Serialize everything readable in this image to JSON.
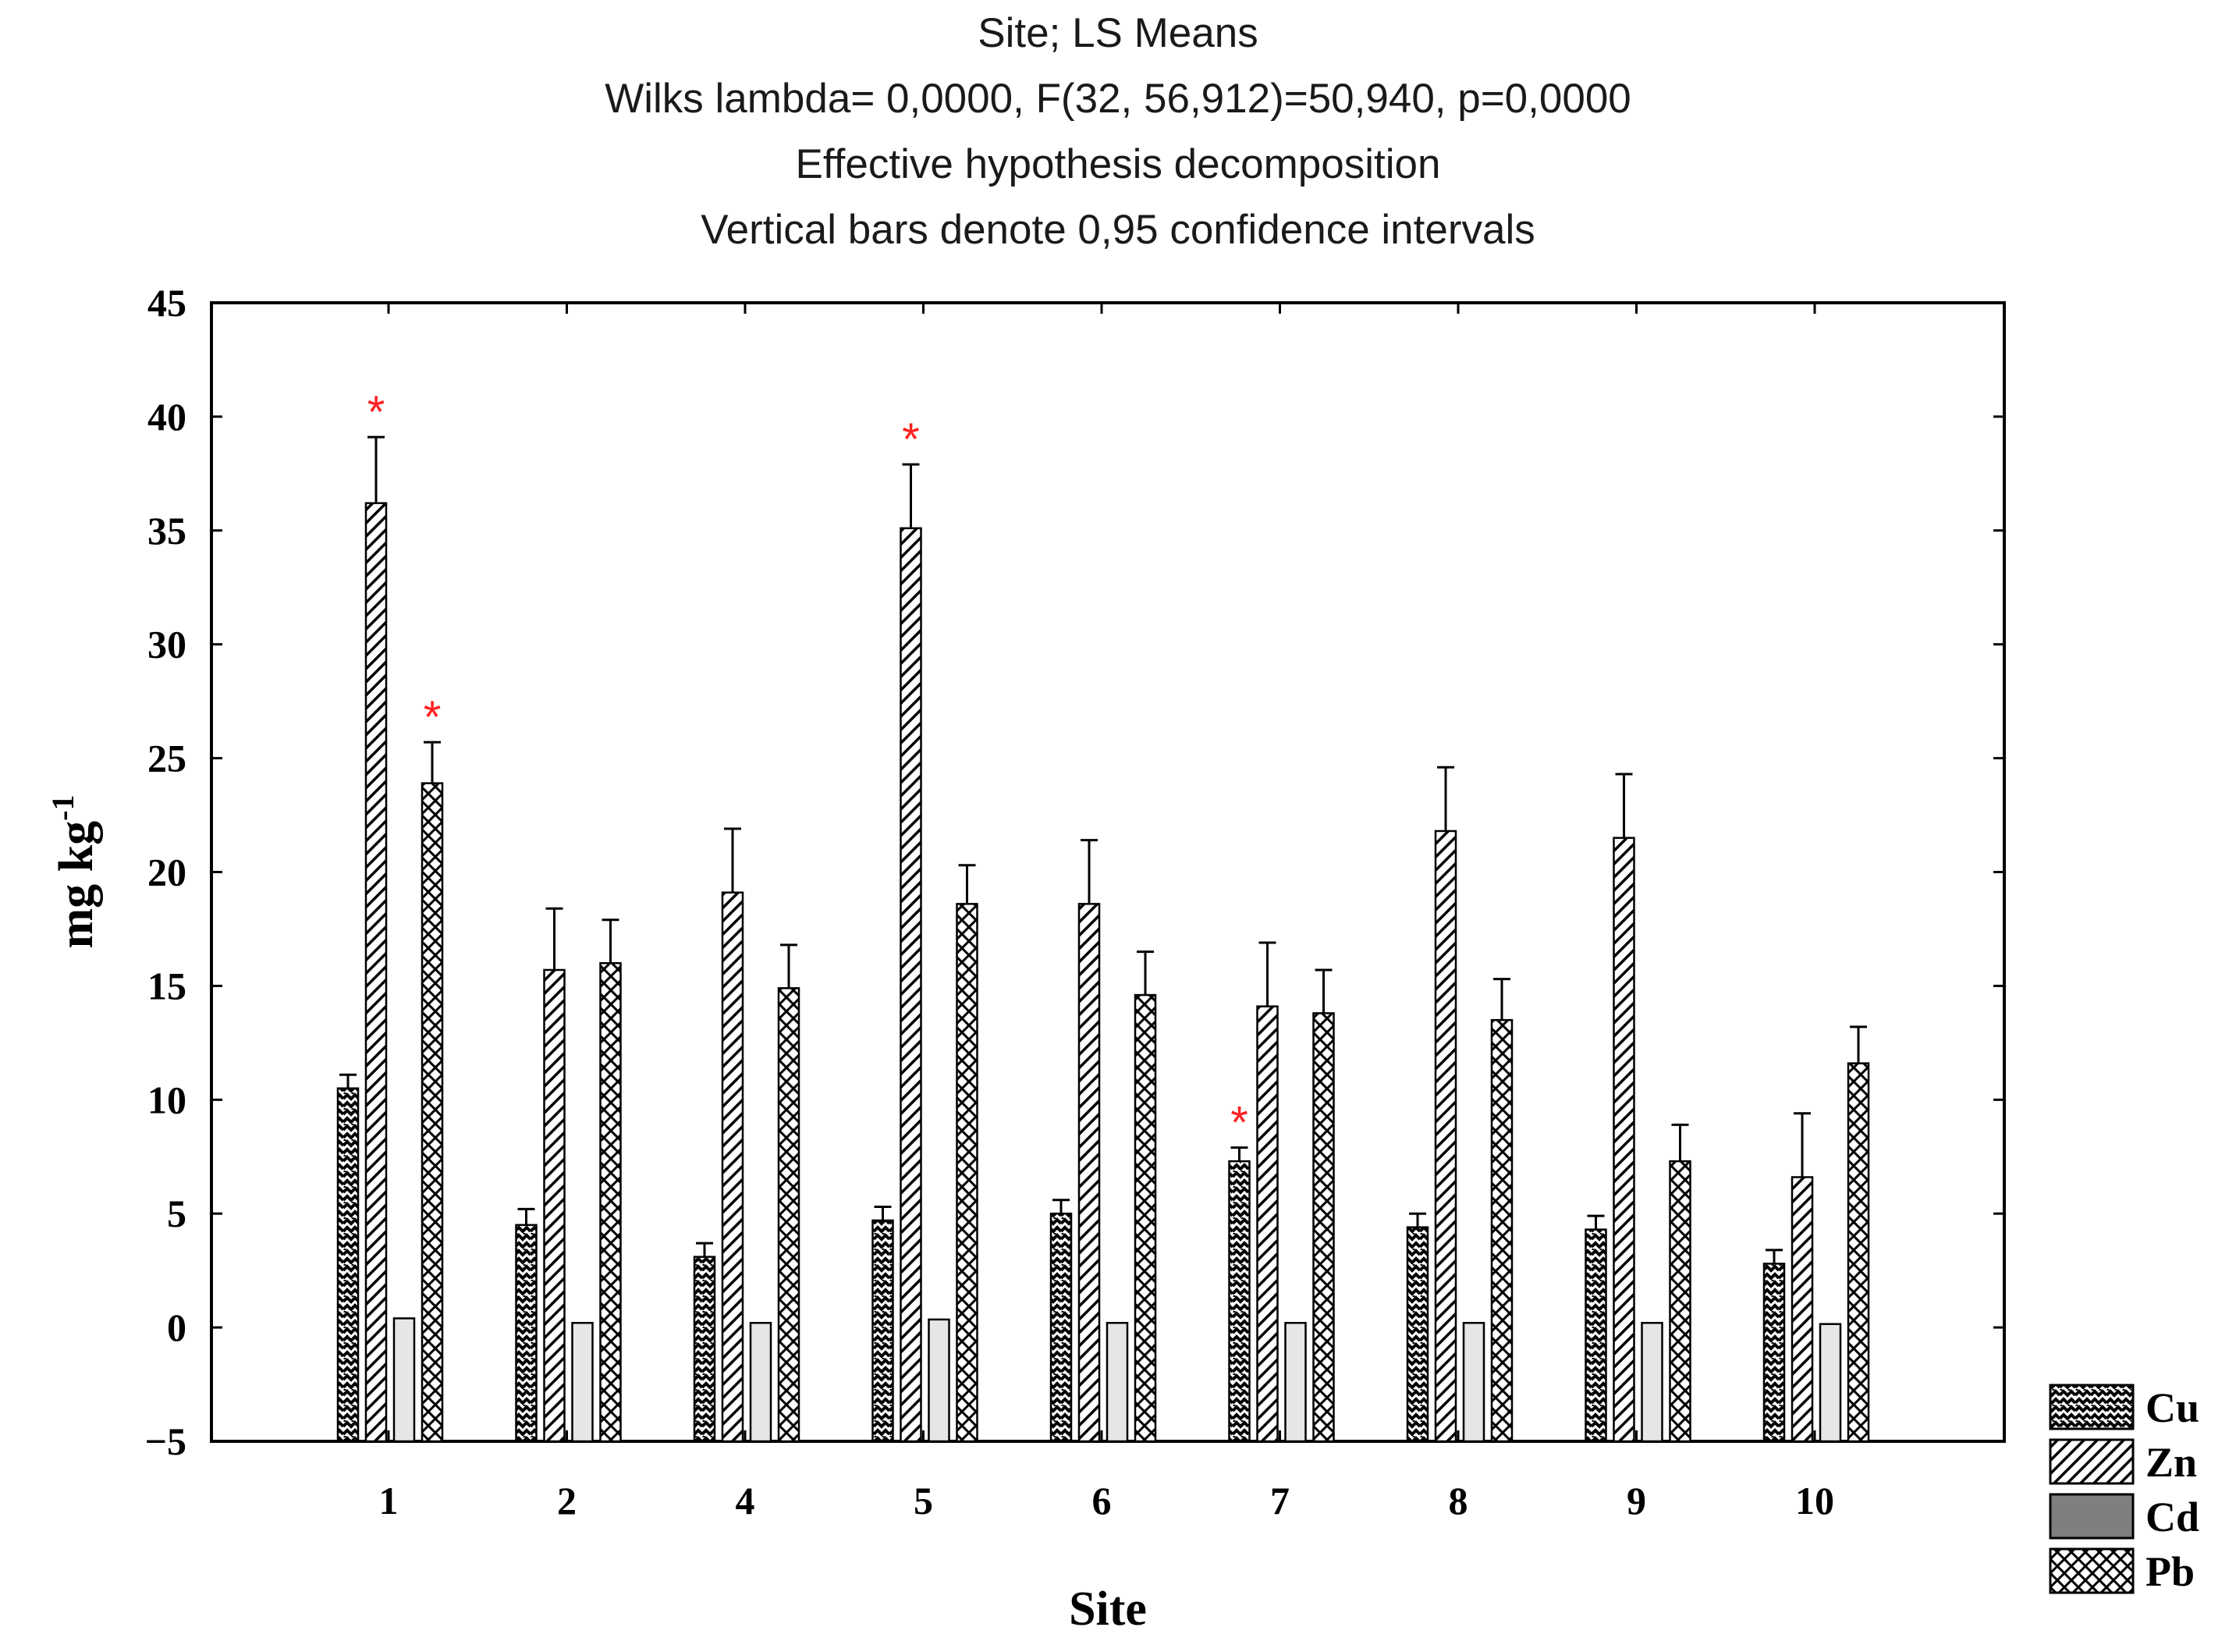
{
  "chart_data": {
    "type": "bar",
    "title_lines": [
      "Site; LS Means",
      "Wilks lambda= 0,0000, F(32, 56,912)=50,940, p=0,0000",
      "Effective hypothesis decomposition",
      "Vertical bars denote 0,95 confidence intervals"
    ],
    "xlabel": "Site",
    "ylabel": "mg kg",
    "ylabel_superscript": "-1",
    "ylim": [
      -5,
      45
    ],
    "yticks": [
      -5,
      0,
      5,
      10,
      15,
      20,
      25,
      30,
      35,
      40,
      45
    ],
    "ytick_labels": [
      "−5",
      "0",
      "5",
      "10",
      "15",
      "20",
      "25",
      "30",
      "35",
      "40",
      "45"
    ],
    "categories": [
      "1",
      "2",
      "4",
      "5",
      "6",
      "7",
      "8",
      "9",
      "10"
    ],
    "legend_position": "bottom-right, outside plot",
    "series": [
      {
        "name": "Cu",
        "pattern": "zigzag",
        "values": [
          10.5,
          4.5,
          3.1,
          4.7,
          5.0,
          7.3,
          4.4,
          4.3,
          2.8
        ],
        "ci_upper": [
          11.1,
          5.2,
          3.7,
          5.3,
          5.6,
          7.9,
          5.0,
          4.9,
          3.4
        ]
      },
      {
        "name": "Zn",
        "pattern": "diagonal",
        "values": [
          36.2,
          15.7,
          19.1,
          35.1,
          18.6,
          14.1,
          21.8,
          21.5,
          6.6
        ],
        "ci_upper": [
          39.1,
          18.4,
          21.9,
          37.9,
          21.4,
          16.9,
          24.6,
          24.3,
          9.4
        ]
      },
      {
        "name": "Cd",
        "pattern": "solid-gray",
        "values": [
          0.4,
          0.2,
          0.2,
          0.35,
          0.2,
          0.2,
          0.2,
          0.2,
          0.15
        ],
        "ci_upper": [
          0.4,
          0.2,
          0.2,
          0.35,
          0.2,
          0.2,
          0.2,
          0.2,
          0.15
        ]
      },
      {
        "name": "Pb",
        "pattern": "crosshatch",
        "values": [
          23.9,
          16.0,
          14.9,
          18.6,
          14.6,
          13.8,
          13.5,
          7.3,
          11.6
        ],
        "ci_upper": [
          25.7,
          17.9,
          16.8,
          20.3,
          16.5,
          15.7,
          15.3,
          8.9,
          13.2
        ]
      }
    ],
    "significance_marks": [
      {
        "category": "1",
        "series": "Zn",
        "symbol": "*"
      },
      {
        "category": "1",
        "series": "Pb",
        "symbol": "*"
      },
      {
        "category": "5",
        "series": "Zn",
        "symbol": "*"
      },
      {
        "category": "7",
        "series": "Cu",
        "symbol": "*"
      }
    ],
    "colors": {
      "frame": "#000000",
      "bar_outline": "#000000",
      "cd_fill": "#e6e6e6",
      "legend_cd_fill": "#7f7f7f",
      "significance": "#ff2020"
    }
  }
}
